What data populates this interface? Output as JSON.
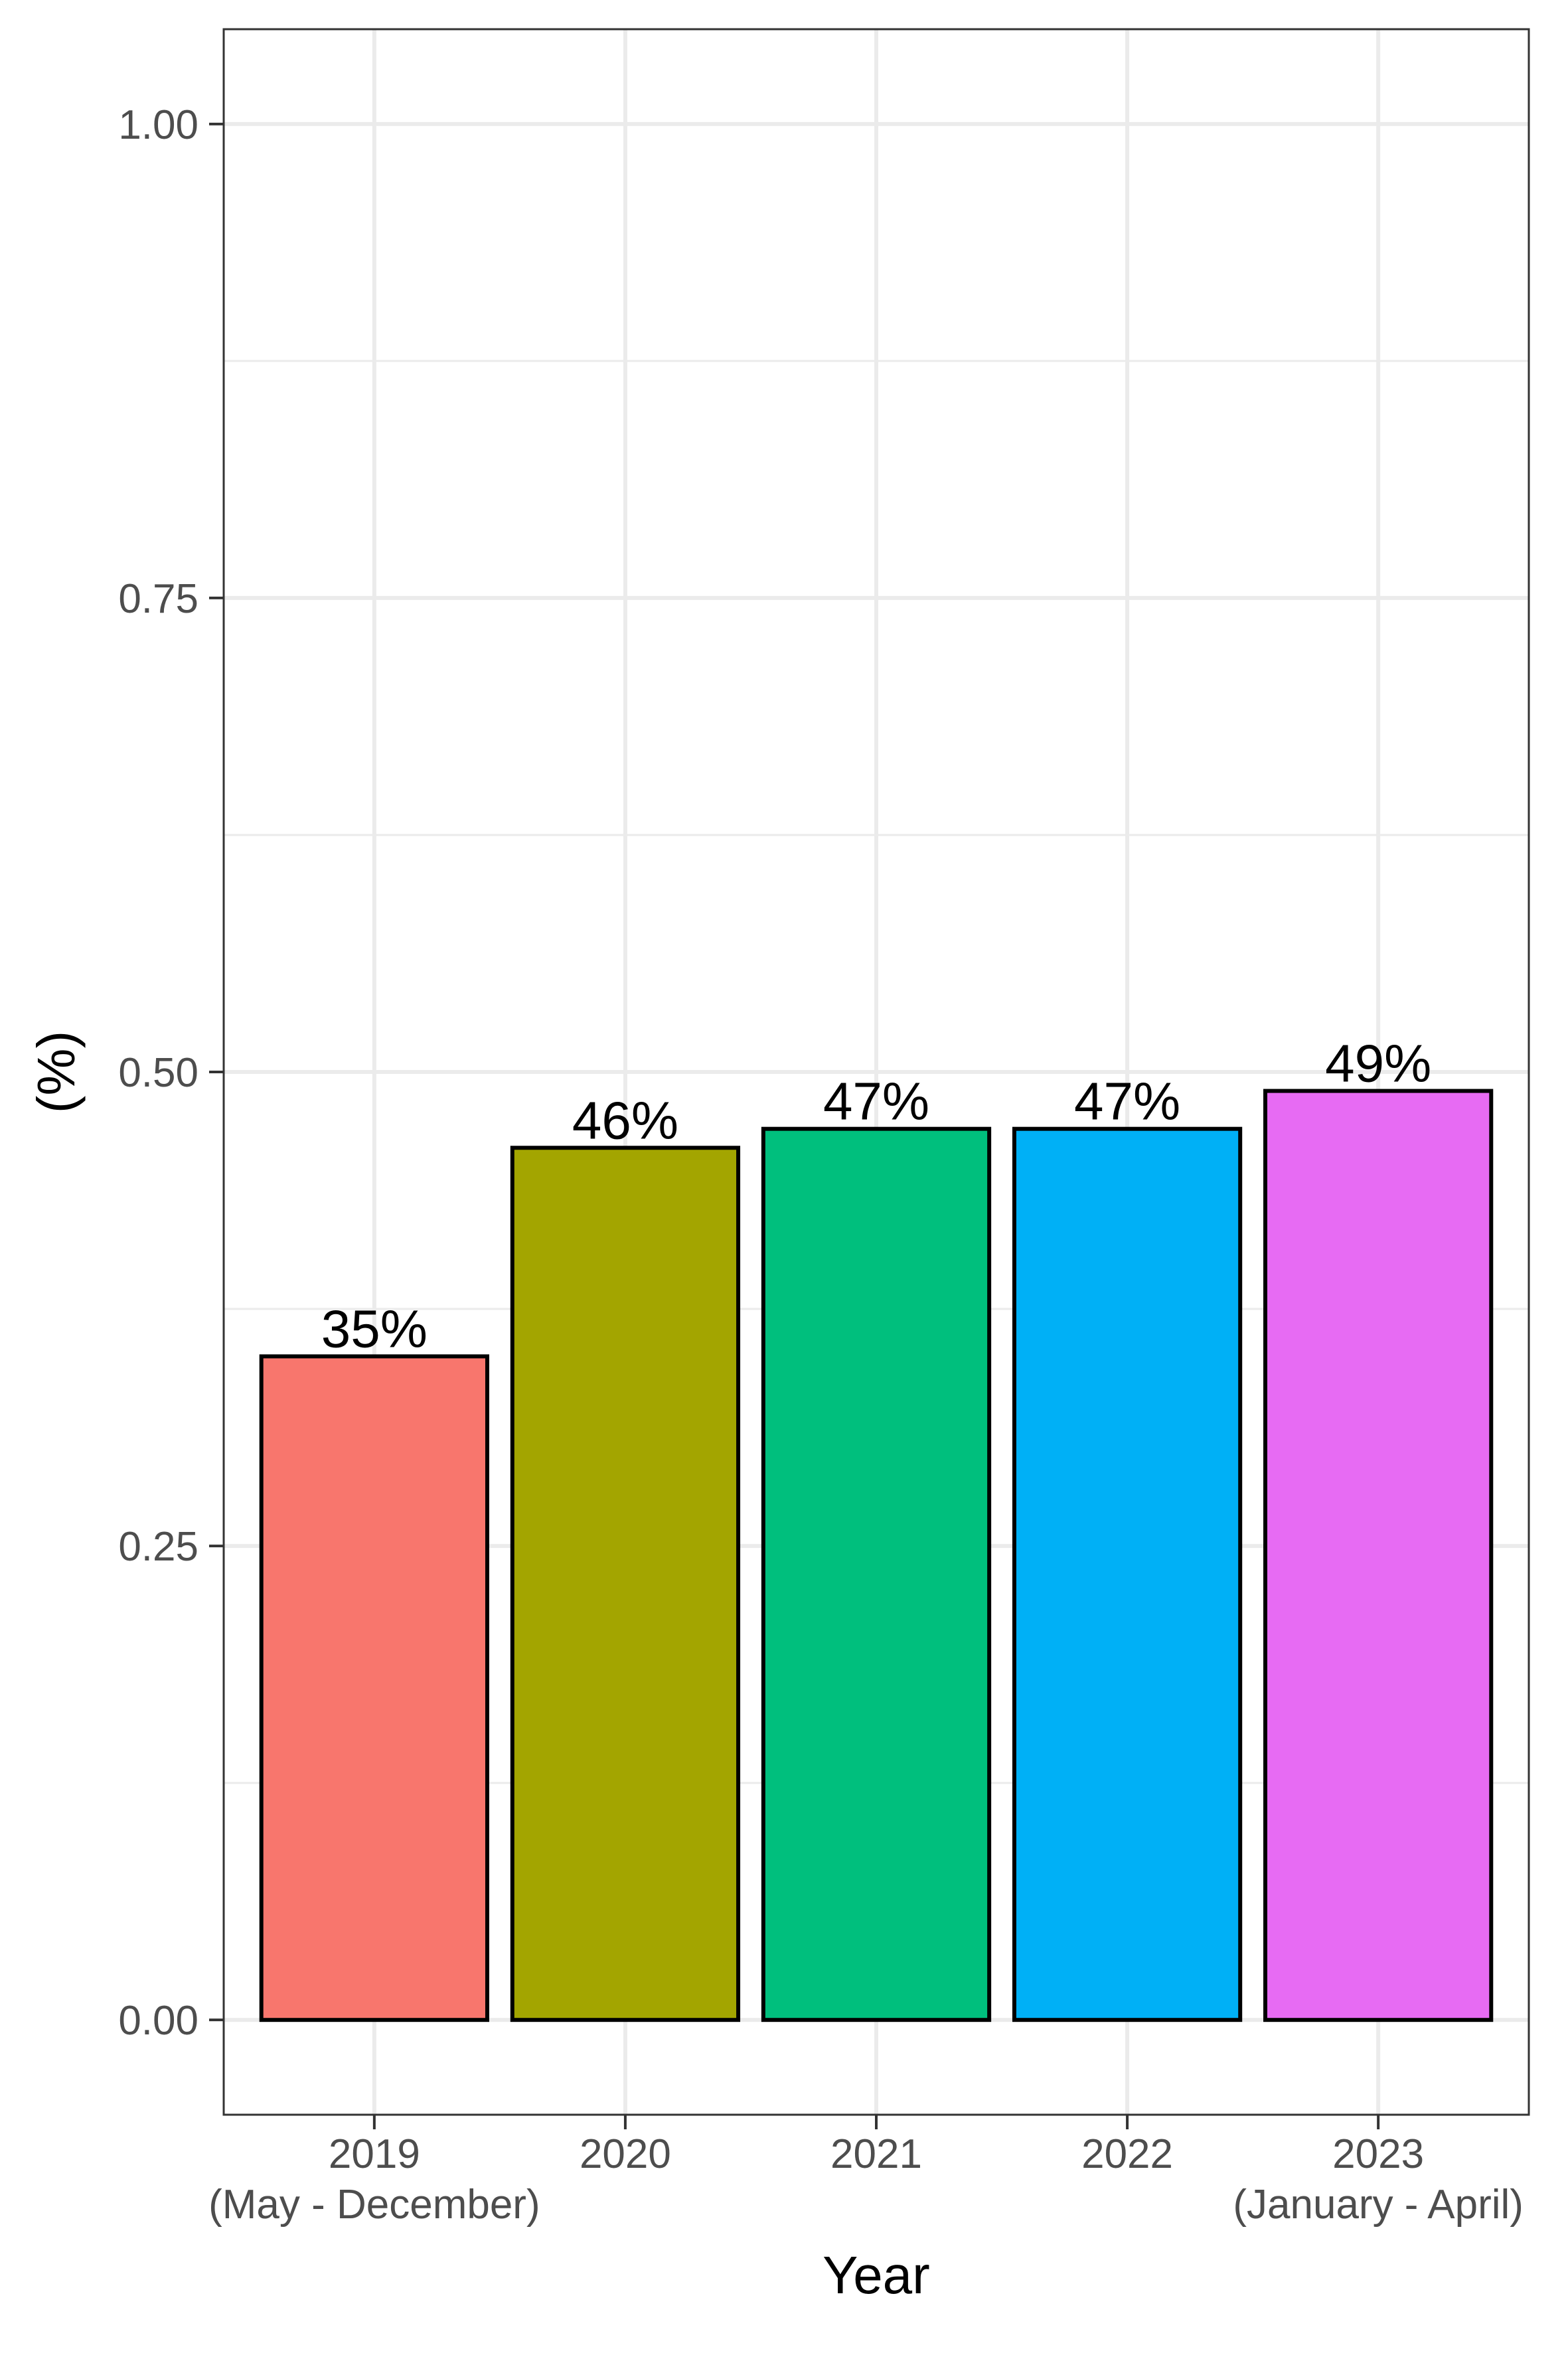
{
  "chart_data": {
    "type": "bar",
    "categories": [
      [
        "2019",
        "(May - December)"
      ],
      [
        "2020"
      ],
      [
        "2021"
      ],
      [
        "2022"
      ],
      [
        "2023",
        "(January - April)"
      ]
    ],
    "values": [
      0.35,
      0.46,
      0.47,
      0.47,
      0.49
    ],
    "data_labels": [
      "35%",
      "46%",
      "47%",
      "47%",
      "49%"
    ],
    "colors": [
      "#F8766D",
      "#A3A500",
      "#00BF7D",
      "#00B0F6",
      "#E76BF3"
    ],
    "title": "",
    "xlabel": "Year",
    "ylabel": "(%)",
    "ylim": [
      -0.05,
      1.05
    ],
    "yticks": [
      "0.00",
      "0.25",
      "0.50",
      "0.75",
      "1.00"
    ],
    "grid": true,
    "legend": "none"
  }
}
